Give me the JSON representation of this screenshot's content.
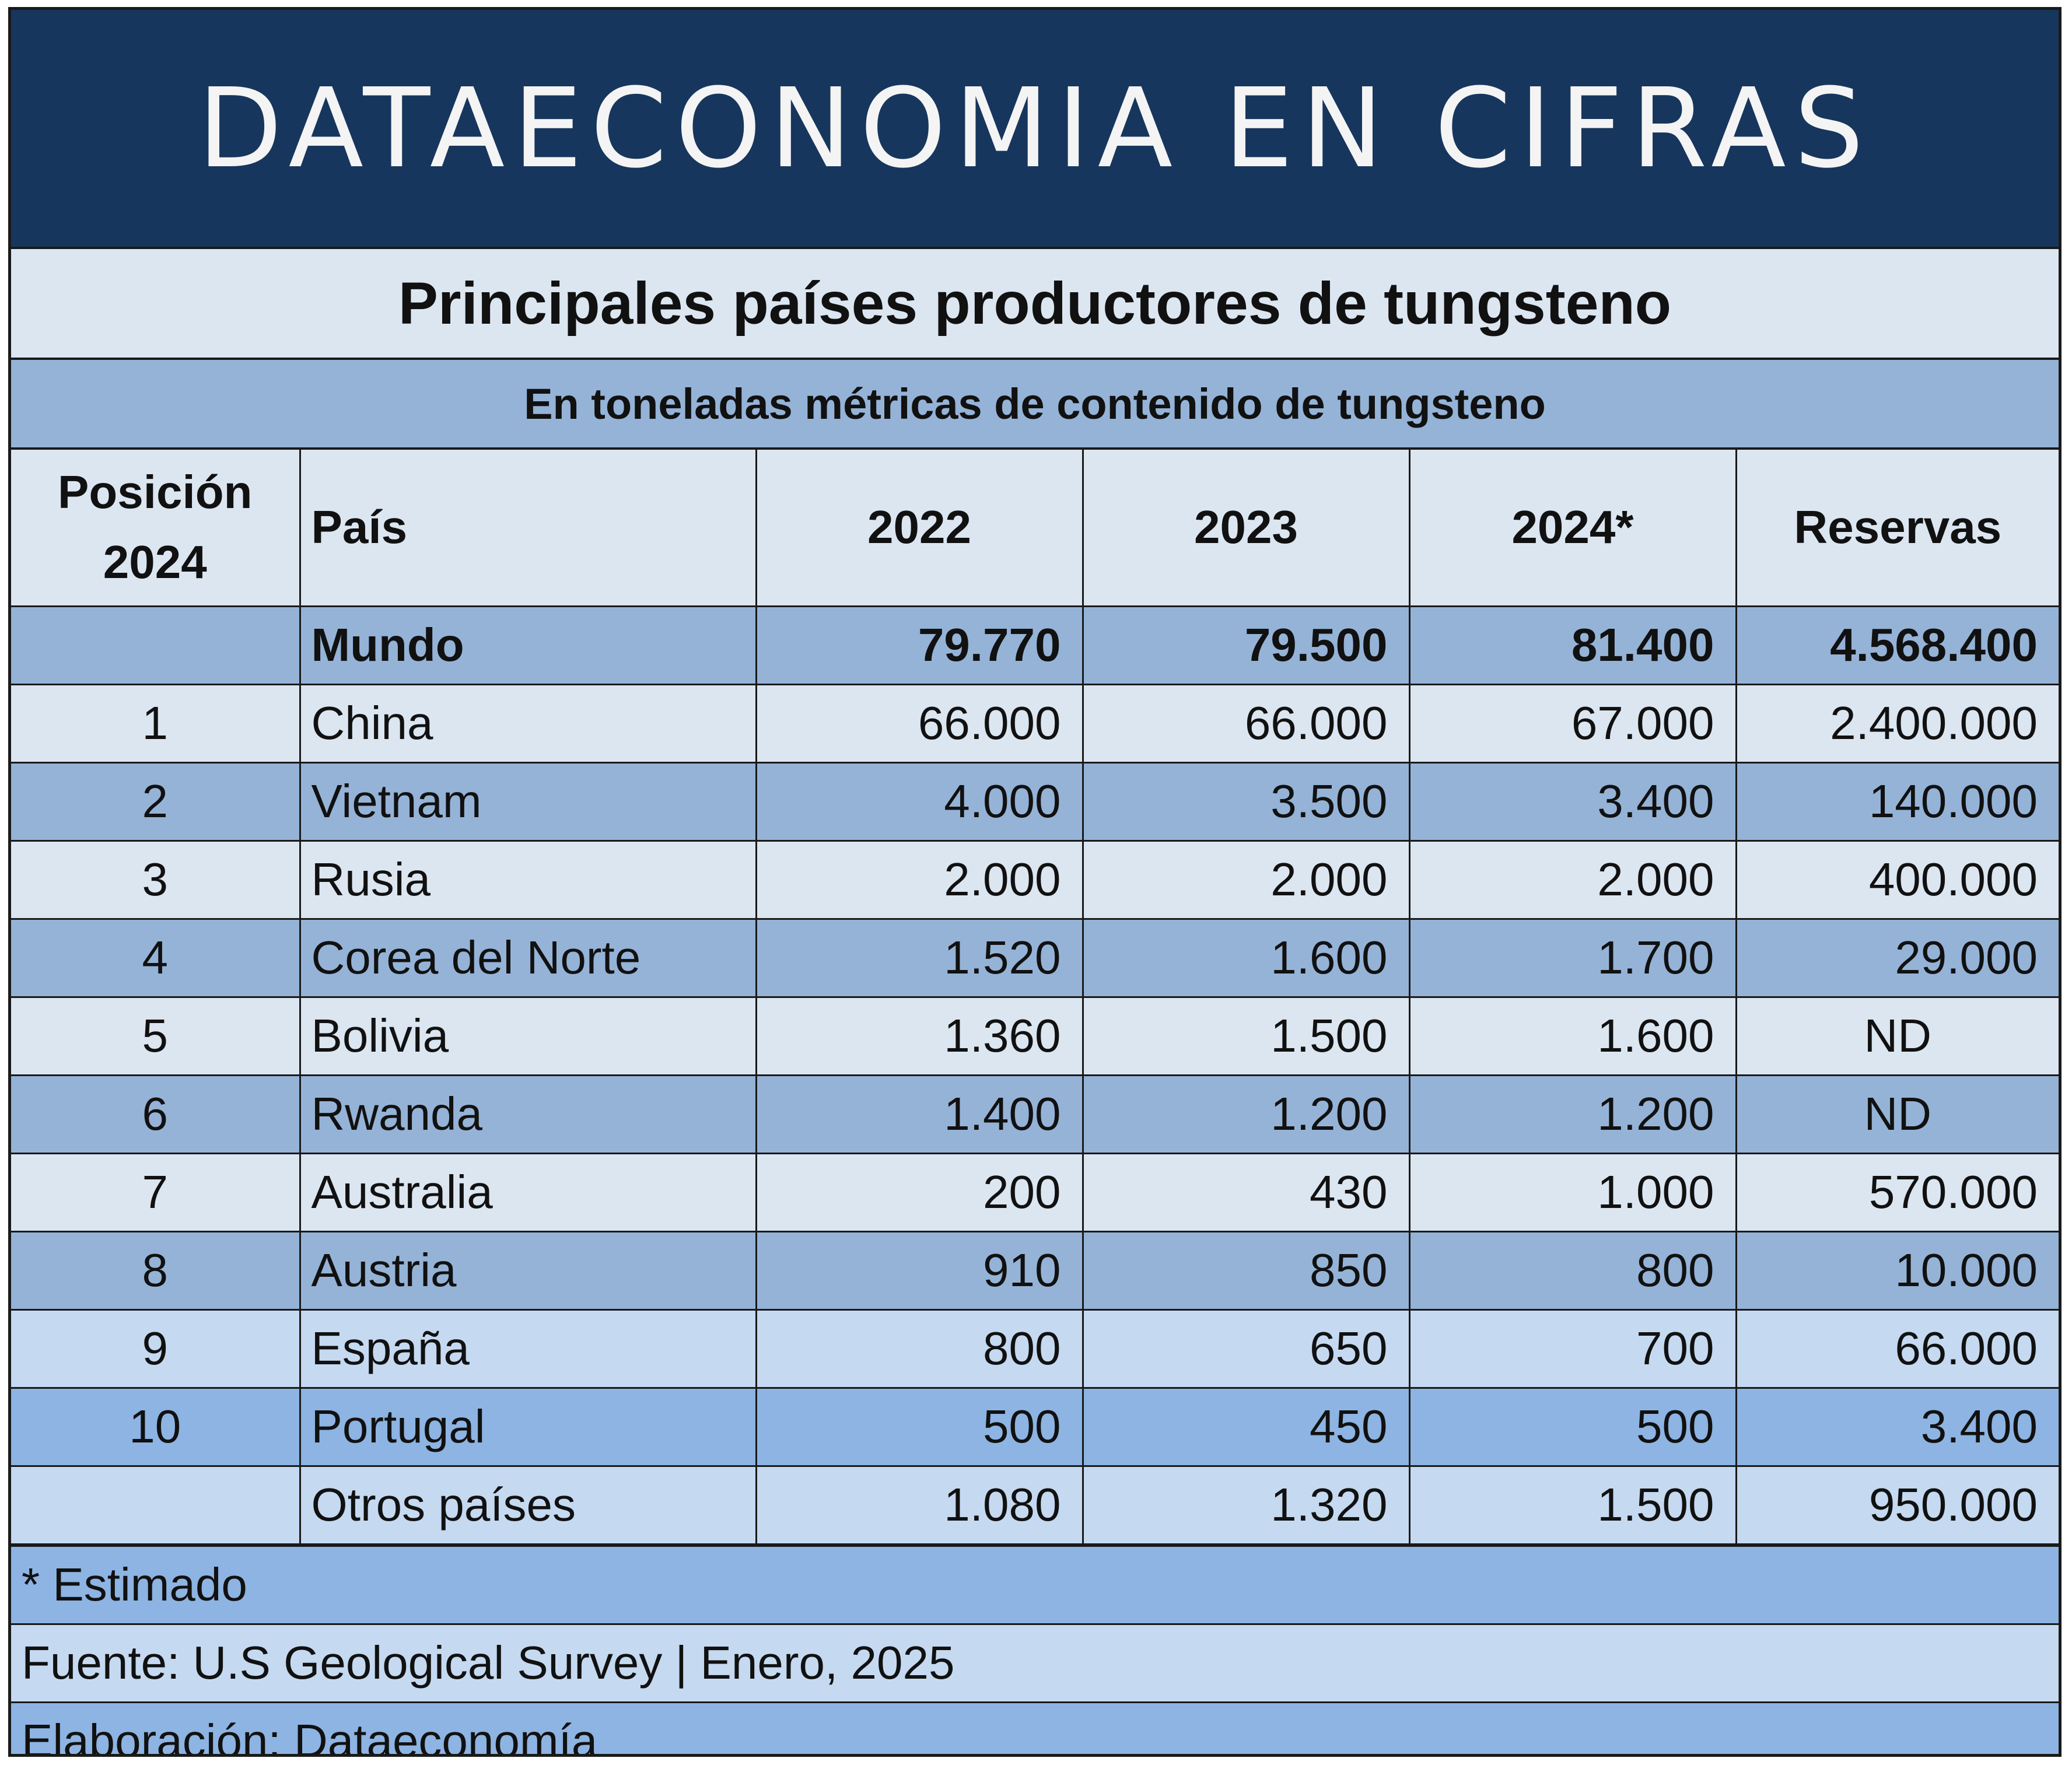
{
  "banner": {
    "title": "DATAECONOMIA EN CIFRAS"
  },
  "title": "Principales países productores de tungsteno",
  "subtitle": "En toneladas métricas de contenido de tungsteno",
  "columns": {
    "posicion_line1": "Posición",
    "posicion_line2": "2024",
    "pais": "País",
    "y2022": "2022",
    "y2023": "2023",
    "y2024": "2024*",
    "reservas": "Reservas"
  },
  "world": {
    "pos": "",
    "pais": "Mundo",
    "y2022": "79.770",
    "y2023": "79.500",
    "y2024": "81.400",
    "reservas": "4.568.400"
  },
  "rows": [
    {
      "pos": "1",
      "pais": "China",
      "y2022": "66.000",
      "y2023": "66.000",
      "y2024": "67.000",
      "reservas": "2.400.000"
    },
    {
      "pos": "2",
      "pais": "Vietnam",
      "y2022": "4.000",
      "y2023": "3.500",
      "y2024": "3.400",
      "reservas": "140.000"
    },
    {
      "pos": "3",
      "pais": "Rusia",
      "y2022": "2.000",
      "y2023": "2.000",
      "y2024": "2.000",
      "reservas": "400.000"
    },
    {
      "pos": "4",
      "pais": "Corea del Norte",
      "y2022": "1.520",
      "y2023": "1.600",
      "y2024": "1.700",
      "reservas": "29.000"
    },
    {
      "pos": "5",
      "pais": "Bolivia",
      "y2022": "1.360",
      "y2023": "1.500",
      "y2024": "1.600",
      "reservas": "ND"
    },
    {
      "pos": "6",
      "pais": "Rwanda",
      "y2022": "1.400",
      "y2023": "1.200",
      "y2024": "1.200",
      "reservas": "ND"
    },
    {
      "pos": "7",
      "pais": "Australia",
      "y2022": "200",
      "y2023": "430",
      "y2024": "1.000",
      "reservas": "570.000"
    },
    {
      "pos": "8",
      "pais": "Austria",
      "y2022": "910",
      "y2023": "850",
      "y2024": "800",
      "reservas": "10.000"
    },
    {
      "pos": "9",
      "pais": "España",
      "y2022": "800",
      "y2023": "650",
      "y2024": "700",
      "reservas": "66.000"
    },
    {
      "pos": "10",
      "pais": "Portugal",
      "y2022": "500",
      "y2023": "450",
      "y2024": "500",
      "reservas": "3.400"
    },
    {
      "pos": "",
      "pais": "Otros países",
      "y2022": "1.080",
      "y2023": "1.320",
      "y2024": "1.500",
      "reservas": "950.000"
    }
  ],
  "footer": {
    "note": "* Estimado",
    "source": "Fuente: U.S Geological Survey | Enero, 2025",
    "credit": "Elaboración: Dataeconomía"
  },
  "colors": {
    "banner": "#17365d",
    "light": "#dce6f1",
    "mid": "#95b3d7",
    "pale": "#c5d9f1",
    "blue": "#8db4e2"
  }
}
